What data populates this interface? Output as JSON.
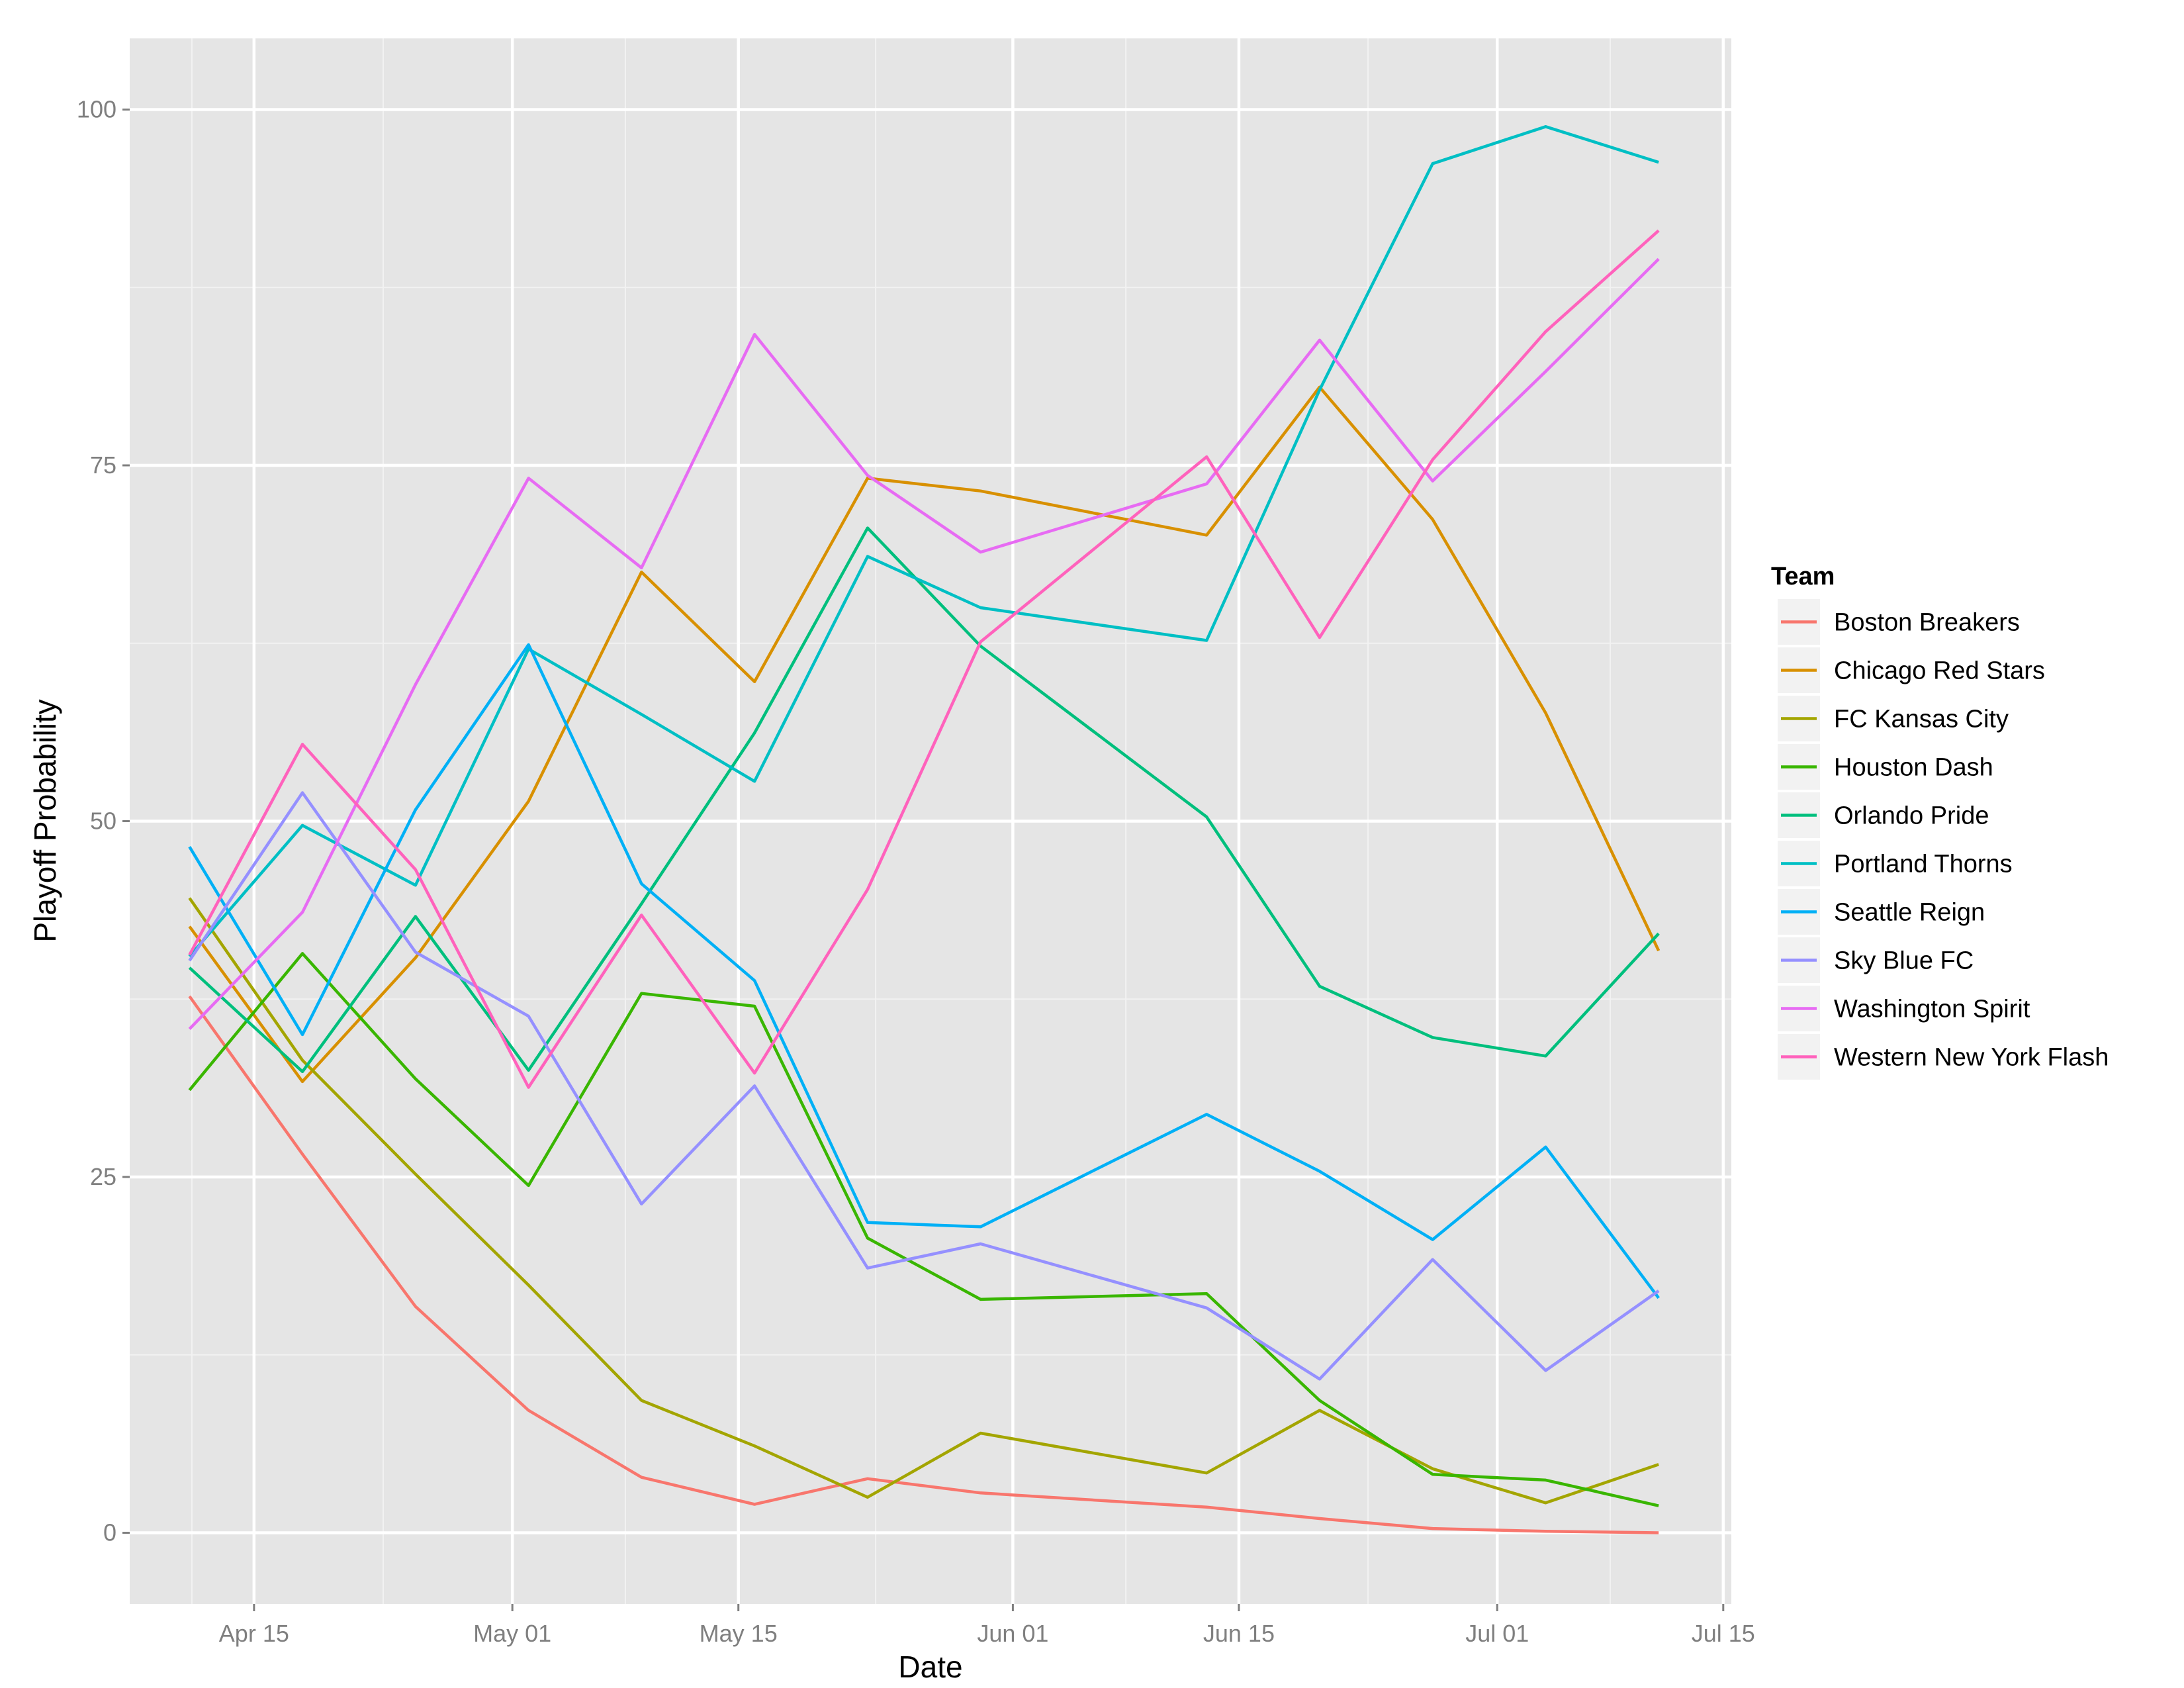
{
  "chart_data": {
    "type": "line",
    "title": "",
    "xlabel": "Date",
    "ylabel": "Playoff Probability",
    "grid": true,
    "legend_title": "Team",
    "legend_position": "right",
    "x": [
      "2016-04-11",
      "2016-04-18",
      "2016-04-25",
      "2016-05-02",
      "2016-05-09",
      "2016-05-16",
      "2016-05-23",
      "2016-05-30",
      "2016-06-13",
      "2016-06-20",
      "2016-06-27",
      "2016-07-04",
      "2016-07-11"
    ],
    "x_numeric": [
      11,
      18,
      25,
      32,
      39,
      46,
      53,
      60,
      74,
      81,
      88,
      95,
      102
    ],
    "xlim": [
      7.3,
      106.5
    ],
    "ylim": [
      -5,
      105
    ],
    "x_ticks": [
      {
        "label": "Apr 15",
        "value": 15
      },
      {
        "label": "May 01",
        "value": 31
      },
      {
        "label": "May 15",
        "value": 45
      },
      {
        "label": "Jun 01",
        "value": 62
      },
      {
        "label": "Jun 15",
        "value": 76
      },
      {
        "label": "Jul 01",
        "value": 92
      },
      {
        "label": "Jul 15",
        "value": 106
      }
    ],
    "y_ticks": [
      {
        "label": "0",
        "value": 0
      },
      {
        "label": "25",
        "value": 25
      },
      {
        "label": "50",
        "value": 50
      },
      {
        "label": "75",
        "value": 75
      },
      {
        "label": "100",
        "value": 100
      }
    ],
    "series": [
      {
        "name": "Boston Breakers",
        "color": "#F8766D",
        "values": [
          37.7,
          26.6,
          15.9,
          8.6,
          3.9,
          2.0,
          3.8,
          2.8,
          1.8,
          1.0,
          0.3,
          0.1,
          0.0
        ]
      },
      {
        "name": "Chicago Red Stars",
        "color": "#D89000",
        "values": [
          42.6,
          31.7,
          40.4,
          51.4,
          67.5,
          59.8,
          74.1,
          73.2,
          70.1,
          80.5,
          71.2,
          57.6,
          40.9
        ]
      },
      {
        "name": "FC Kansas City",
        "color": "#A3A500",
        "values": [
          44.6,
          33.2,
          25.2,
          17.4,
          9.3,
          6.1,
          2.5,
          7.0,
          4.2,
          8.6,
          4.5,
          2.1,
          4.8
        ]
      },
      {
        "name": "Houston Dash",
        "color": "#39B600",
        "values": [
          31.1,
          40.7,
          31.9,
          24.4,
          37.9,
          37.0,
          20.7,
          16.4,
          16.8,
          9.3,
          4.1,
          3.7,
          1.9
        ]
      },
      {
        "name": "Orlando Pride",
        "color": "#00BF7D",
        "values": [
          39.7,
          32.4,
          43.3,
          32.5,
          44.2,
          56.2,
          70.6,
          62.3,
          50.3,
          38.4,
          34.8,
          33.5,
          42.1
        ]
      },
      {
        "name": "Portland Thorns",
        "color": "#00BFC4",
        "values": [
          40.5,
          49.7,
          45.5,
          62.1,
          57.5,
          52.8,
          68.6,
          65.0,
          62.7,
          80.3,
          96.2,
          98.8,
          96.3
        ]
      },
      {
        "name": "Seattle Reign",
        "color": "#00B0F6",
        "values": [
          48.2,
          35.0,
          50.8,
          62.4,
          45.6,
          38.8,
          21.8,
          21.5,
          29.4,
          25.4,
          20.6,
          27.1,
          16.5
        ]
      },
      {
        "name": "Sky Blue FC",
        "color": "#9590FF",
        "values": [
          40.2,
          52.0,
          40.8,
          36.3,
          23.1,
          31.4,
          18.6,
          20.3,
          15.8,
          10.8,
          19.2,
          11.4,
          17.0
        ]
      },
      {
        "name": "Washington Spirit",
        "color": "#E76BF3",
        "values": [
          35.4,
          43.6,
          59.6,
          74.1,
          67.8,
          84.2,
          74.3,
          68.9,
          73.7,
          83.8,
          73.9,
          81.6,
          89.5
        ]
      },
      {
        "name": "Western New York Flash",
        "color": "#FF62BC",
        "values": [
          40.6,
          55.4,
          46.6,
          31.3,
          43.4,
          32.3,
          45.2,
          62.6,
          75.6,
          62.9,
          75.4,
          84.4,
          91.5
        ]
      }
    ]
  }
}
